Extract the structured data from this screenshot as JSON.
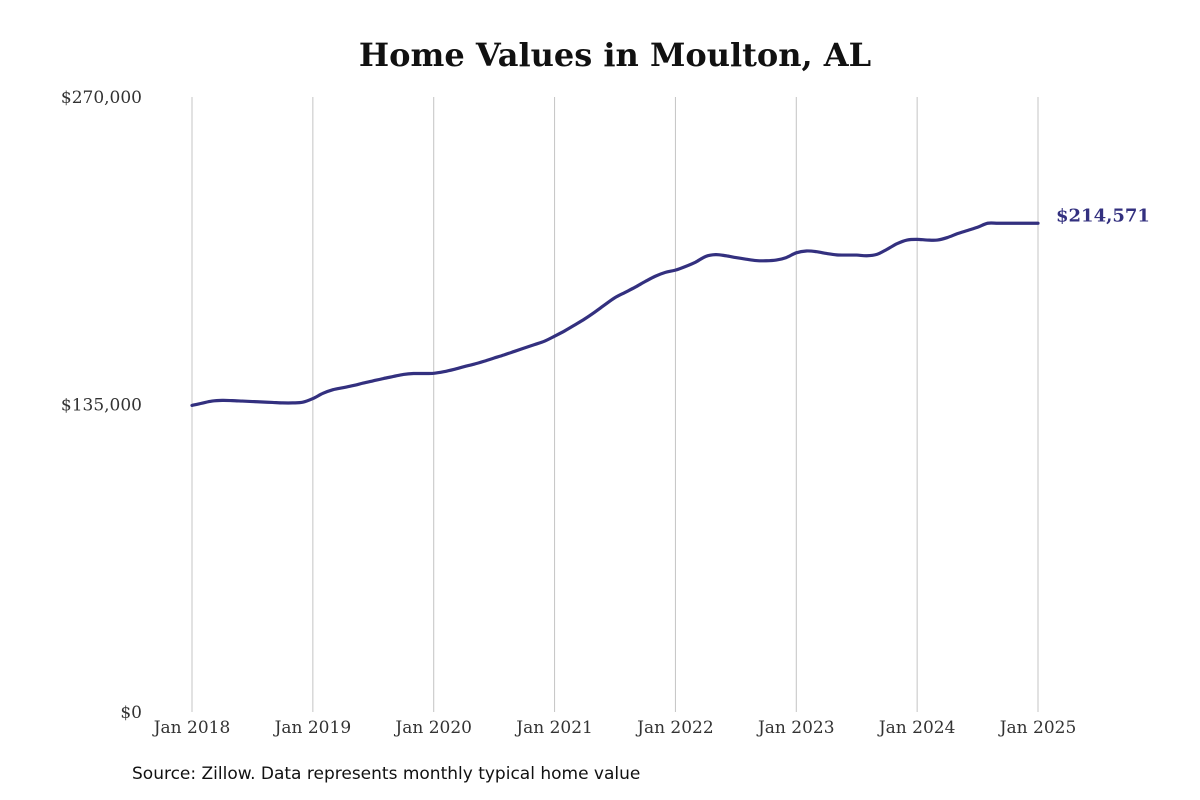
{
  "chart_data": {
    "type": "line",
    "title": "Home Values in Moulton, AL",
    "xlabel": "",
    "ylabel": "",
    "x_tick_labels": [
      "Jan 2018",
      "Jan 2019",
      "Jan 2020",
      "Jan 2021",
      "Jan 2022",
      "Jan 2023",
      "Jan 2024",
      "Jan 2025"
    ],
    "y_tick_labels": [
      "$0",
      "$135,000",
      "$270,000"
    ],
    "y_ticks": [
      0,
      135000,
      270000
    ],
    "ylim": [
      0,
      270000
    ],
    "grid": "vertical",
    "x": [
      "2018-01",
      "2018-02",
      "2018-03",
      "2018-04",
      "2018-05",
      "2018-06",
      "2018-07",
      "2018-08",
      "2018-09",
      "2018-10",
      "2018-11",
      "2018-12",
      "2019-01",
      "2019-02",
      "2019-03",
      "2019-04",
      "2019-05",
      "2019-06",
      "2019-07",
      "2019-08",
      "2019-09",
      "2019-10",
      "2019-11",
      "2019-12",
      "2020-01",
      "2020-02",
      "2020-03",
      "2020-04",
      "2020-05",
      "2020-06",
      "2020-07",
      "2020-08",
      "2020-09",
      "2020-10",
      "2020-11",
      "2020-12",
      "2021-01",
      "2021-02",
      "2021-03",
      "2021-04",
      "2021-05",
      "2021-06",
      "2021-07",
      "2021-08",
      "2021-09",
      "2021-10",
      "2021-11",
      "2021-12",
      "2022-01",
      "2022-02",
      "2022-03",
      "2022-04",
      "2022-05",
      "2022-06",
      "2022-07",
      "2022-08",
      "2022-09",
      "2022-10",
      "2022-11",
      "2022-12",
      "2023-01",
      "2023-02",
      "2023-03",
      "2023-04",
      "2023-05",
      "2023-06",
      "2023-07",
      "2023-08",
      "2023-09",
      "2023-10",
      "2023-11",
      "2023-12",
      "2024-01",
      "2024-02",
      "2024-03",
      "2024-04",
      "2024-05",
      "2024-06",
      "2024-07",
      "2024-08",
      "2024-09",
      "2024-10",
      "2024-11",
      "2024-12",
      "2025-01"
    ],
    "series": [
      {
        "color": "#33307f",
        "values": [
          134600,
          135600,
          136500,
          136800,
          136700,
          136500,
          136300,
          136100,
          135900,
          135700,
          135700,
          136000,
          137600,
          139900,
          141500,
          142400,
          143300,
          144400,
          145400,
          146400,
          147300,
          148200,
          148600,
          148600,
          148700,
          149400,
          150400,
          151600,
          152700,
          154000,
          155400,
          156800,
          158300,
          159800,
          161300,
          162800,
          165000,
          167300,
          169900,
          172600,
          175600,
          178800,
          181900,
          184200,
          186500,
          189000,
          191300,
          193000,
          194000,
          195600,
          197500,
          200000,
          200800,
          200300,
          199500,
          198800,
          198200,
          198100,
          198400,
          199500,
          201600,
          202400,
          202100,
          201300,
          200700,
          200600,
          200600,
          200300,
          200900,
          203100,
          205600,
          207200,
          207500,
          207200,
          207200,
          208300,
          210000,
          211400,
          212800,
          214571,
          214571,
          214571,
          214571,
          214571,
          214571
        ],
        "end_label": "$214,571"
      }
    ]
  },
  "source_note": "Source: Zillow. Data represents monthly typical home value"
}
